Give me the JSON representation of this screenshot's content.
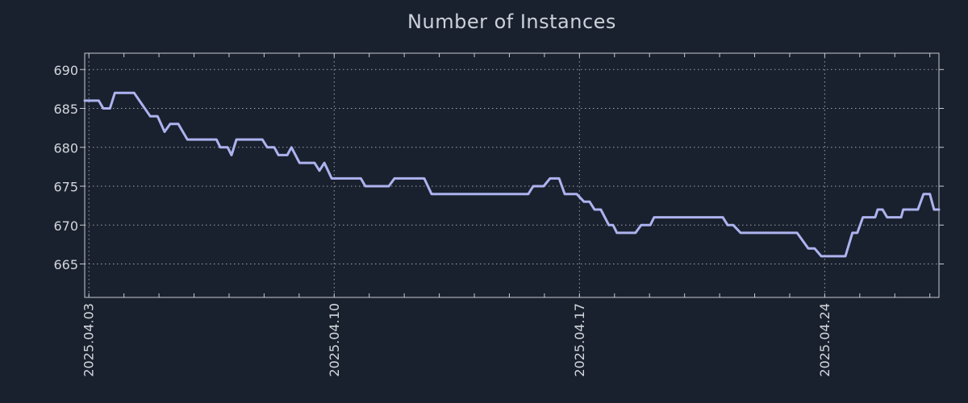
{
  "title": "Number of Instances",
  "colors": {
    "background": "#1a212e",
    "line": "#adb3ef",
    "grid": "#9ba1a9",
    "frame": "#c6cad0",
    "tick_label": "#d2d6dc",
    "title": "#ccd2da"
  },
  "chart_data": {
    "type": "line",
    "title": "Number of Instances",
    "xlabel": "",
    "ylabel": "",
    "grid": "dotted",
    "legend": "none",
    "x_unit": "days since 2025-04-03",
    "xlim": [
      -0.12,
      24.26
    ],
    "ylim": [
      660.7,
      692.1
    ],
    "y_ticks": [
      665,
      670,
      675,
      680,
      685,
      690
    ],
    "x_ticks": [
      {
        "label": "2025.04.03",
        "day": 0
      },
      {
        "label": "2025.04.10",
        "day": 7
      },
      {
        "label": "2025.04.17",
        "day": 14
      },
      {
        "label": "2025.04.24",
        "day": 21
      }
    ],
    "x_minor_tick_every_days": 1,
    "series": [
      {
        "name": "instances",
        "points": [
          [
            -0.12,
            686
          ],
          [
            0.28,
            686
          ],
          [
            0.41,
            685
          ],
          [
            0.6,
            685
          ],
          [
            0.74,
            687
          ],
          [
            1.29,
            687
          ],
          [
            1.75,
            684
          ],
          [
            1.96,
            684
          ],
          [
            2.16,
            682
          ],
          [
            2.32,
            683
          ],
          [
            2.55,
            683
          ],
          [
            2.81,
            681
          ],
          [
            3.64,
            681
          ],
          [
            3.75,
            680
          ],
          [
            3.96,
            680
          ],
          [
            4.07,
            679
          ],
          [
            4.21,
            681
          ],
          [
            4.95,
            681
          ],
          [
            5.09,
            680
          ],
          [
            5.29,
            680
          ],
          [
            5.41,
            679
          ],
          [
            5.66,
            679
          ],
          [
            5.78,
            680
          ],
          [
            6.01,
            678
          ],
          [
            6.44,
            678
          ],
          [
            6.58,
            677
          ],
          [
            6.72,
            678
          ],
          [
            6.93,
            676
          ],
          [
            7.76,
            676
          ],
          [
            7.89,
            675
          ],
          [
            8.56,
            675
          ],
          [
            8.72,
            676
          ],
          [
            9.57,
            676
          ],
          [
            9.78,
            674
          ],
          [
            12.54,
            674
          ],
          [
            12.68,
            675
          ],
          [
            12.98,
            675
          ],
          [
            13.16,
            676
          ],
          [
            13.42,
            676
          ],
          [
            13.58,
            674
          ],
          [
            13.92,
            674
          ],
          [
            14.13,
            673
          ],
          [
            14.29,
            673
          ],
          [
            14.43,
            672
          ],
          [
            14.61,
            672
          ],
          [
            14.84,
            670
          ],
          [
            14.96,
            670
          ],
          [
            15.07,
            669
          ],
          [
            15.6,
            669
          ],
          [
            15.76,
            670
          ],
          [
            16.02,
            670
          ],
          [
            16.13,
            671
          ],
          [
            18.09,
            671
          ],
          [
            18.23,
            670
          ],
          [
            18.39,
            670
          ],
          [
            18.6,
            669
          ],
          [
            20.21,
            669
          ],
          [
            20.53,
            667
          ],
          [
            20.71,
            667
          ],
          [
            20.9,
            666
          ],
          [
            21.59,
            666
          ],
          [
            21.79,
            669
          ],
          [
            21.93,
            669
          ],
          [
            22.09,
            671
          ],
          [
            22.44,
            671
          ],
          [
            22.51,
            672
          ],
          [
            22.65,
            672
          ],
          [
            22.78,
            671
          ],
          [
            23.18,
            671
          ],
          [
            23.24,
            672
          ],
          [
            23.66,
            672
          ],
          [
            23.82,
            674
          ],
          [
            24.0,
            674
          ],
          [
            24.12,
            672
          ],
          [
            24.26,
            672
          ]
        ]
      }
    ]
  }
}
